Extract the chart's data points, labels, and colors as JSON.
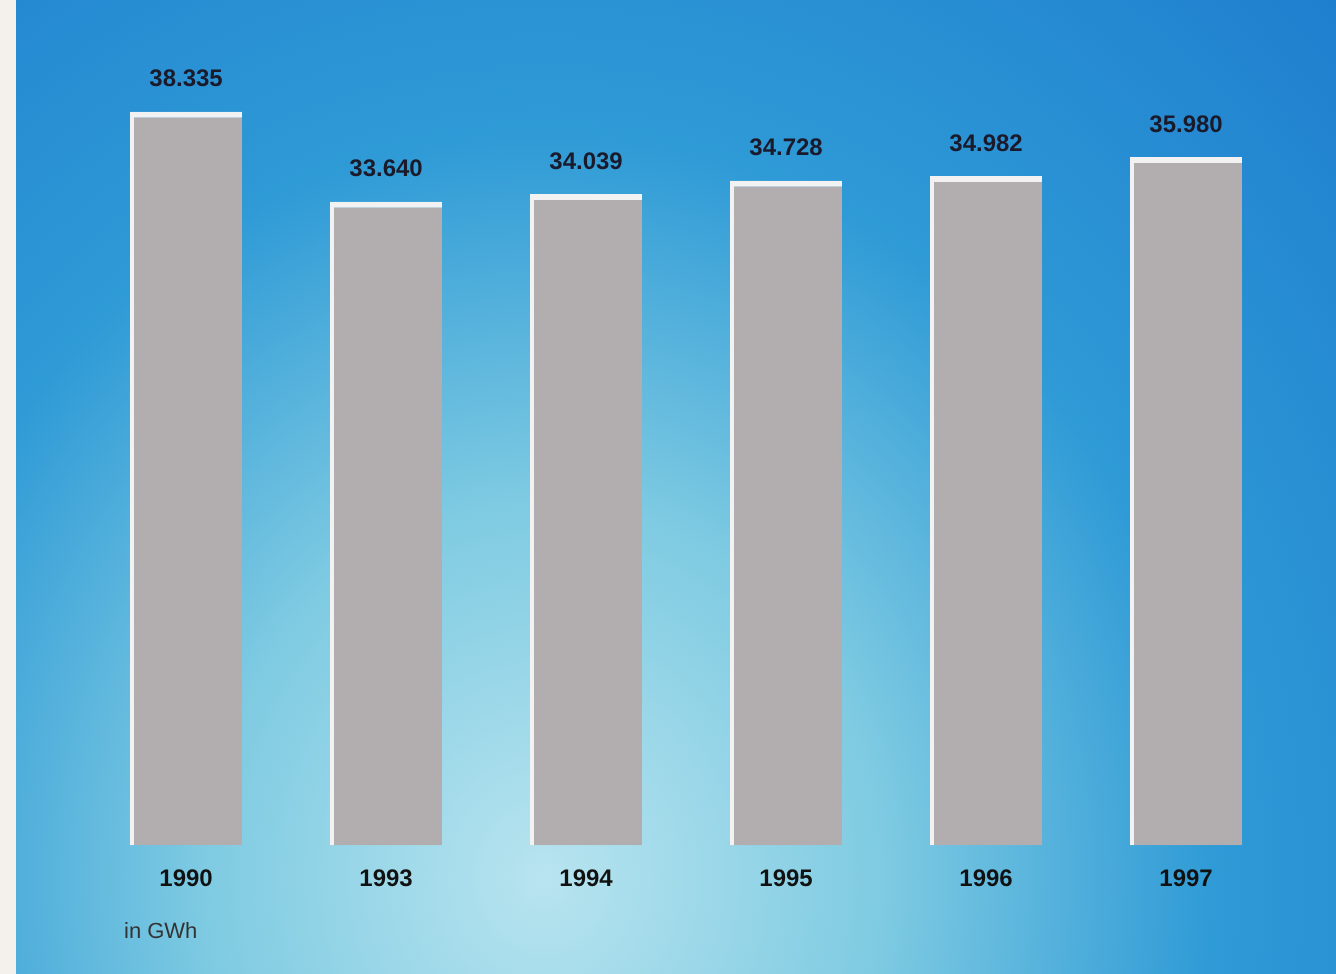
{
  "chart_data": {
    "type": "bar",
    "categories": [
      "1990",
      "1993",
      "1994",
      "1995",
      "1996",
      "1997"
    ],
    "values": [
      38335,
      33640,
      34039,
      34728,
      34982,
      35980
    ],
    "value_labels": [
      "38.335",
      "33.640",
      "34.039",
      "34.728",
      "34.982",
      "35.980"
    ],
    "color": "#b2aeb0",
    "tick_labels": "x",
    "grid": false,
    "legend": false,
    "annotations": [
      "in GWh"
    ]
  }
}
